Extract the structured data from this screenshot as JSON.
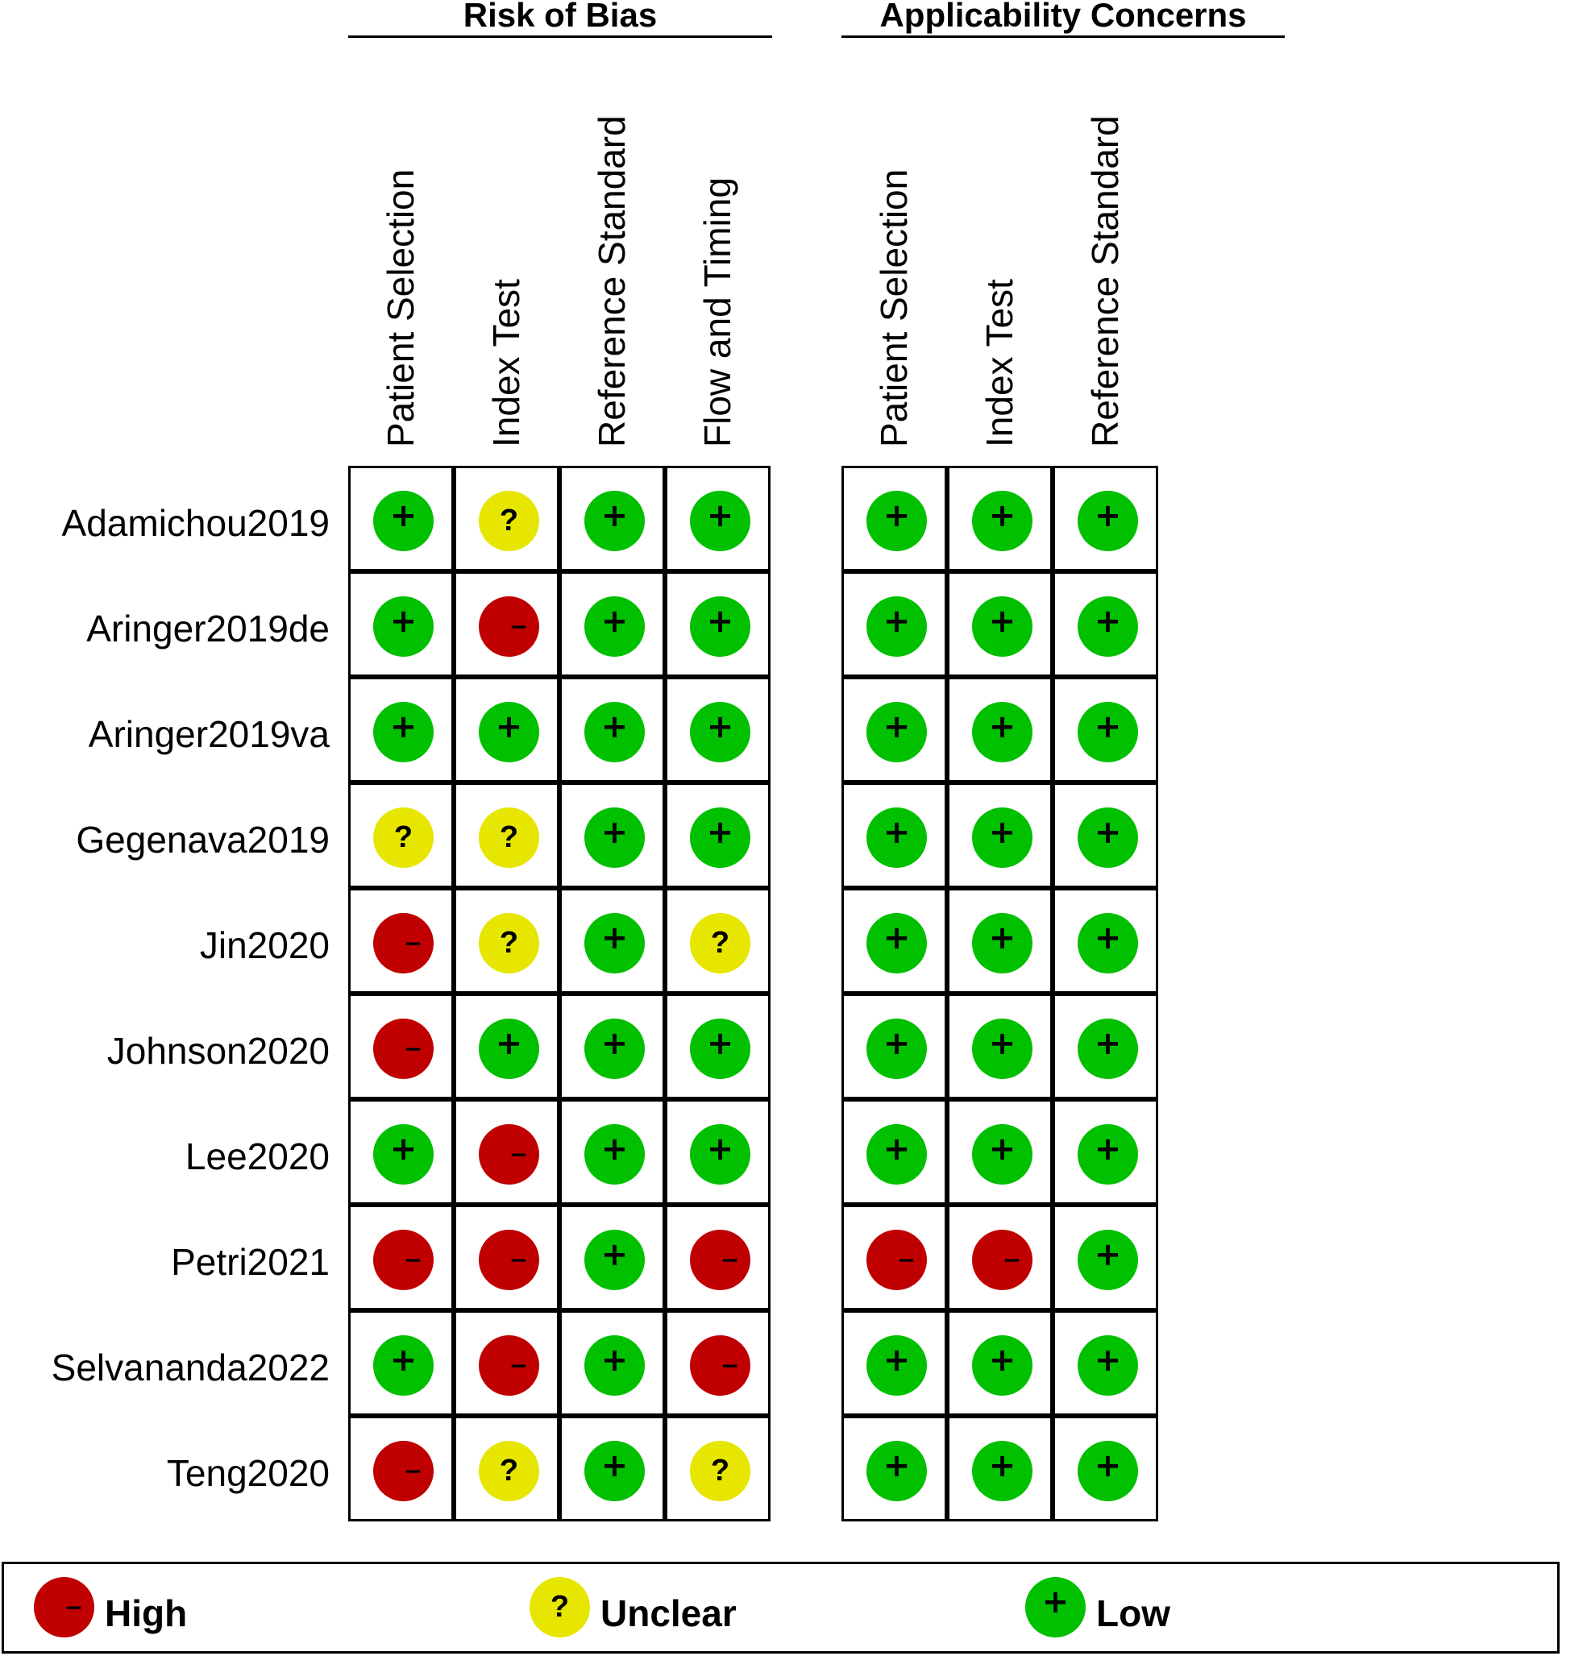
{
  "colors": {
    "high": "#c00000",
    "unclear": "#e6e600",
    "low": "#00c000"
  },
  "groups": [
    {
      "title": "Risk of Bias",
      "columns": [
        "Patient Selection",
        "Index Test",
        "Reference Standard",
        "Flow and Timing"
      ]
    },
    {
      "title": "Applicability Concerns",
      "columns": [
        "Patient Selection",
        "Index Test",
        "Reference Standard"
      ]
    }
  ],
  "studies": [
    {
      "name": "Adamichou2019",
      "bias": [
        "low",
        "unclear",
        "low",
        "low"
      ],
      "applicability": [
        "low",
        "low",
        "low"
      ]
    },
    {
      "name": "Aringer2019de",
      "bias": [
        "low",
        "high",
        "low",
        "low"
      ],
      "applicability": [
        "low",
        "low",
        "low"
      ]
    },
    {
      "name": "Aringer2019va",
      "bias": [
        "low",
        "low",
        "low",
        "low"
      ],
      "applicability": [
        "low",
        "low",
        "low"
      ]
    },
    {
      "name": "Gegenava2019",
      "bias": [
        "unclear",
        "unclear",
        "low",
        "low"
      ],
      "applicability": [
        "low",
        "low",
        "low"
      ]
    },
    {
      "name": "Jin2020",
      "bias": [
        "high",
        "unclear",
        "low",
        "unclear"
      ],
      "applicability": [
        "low",
        "low",
        "low"
      ]
    },
    {
      "name": "Johnson2020",
      "bias": [
        "high",
        "low",
        "low",
        "low"
      ],
      "applicability": [
        "low",
        "low",
        "low"
      ]
    },
    {
      "name": "Lee2020",
      "bias": [
        "low",
        "high",
        "low",
        "low"
      ],
      "applicability": [
        "low",
        "low",
        "low"
      ]
    },
    {
      "name": "Petri2021",
      "bias": [
        "high",
        "high",
        "low",
        "high"
      ],
      "applicability": [
        "high",
        "high",
        "low"
      ]
    },
    {
      "name": "Selvananda2022",
      "bias": [
        "low",
        "high",
        "low",
        "high"
      ],
      "applicability": [
        "low",
        "low",
        "low"
      ]
    },
    {
      "name": "Teng2020",
      "bias": [
        "high",
        "unclear",
        "low",
        "unclear"
      ],
      "applicability": [
        "low",
        "low",
        "low"
      ]
    }
  ],
  "symbols": {
    "high": "−",
    "unclear": "?",
    "low": "+"
  },
  "legend": [
    {
      "key": "high",
      "label": "High"
    },
    {
      "key": "unclear",
      "label": "Unclear"
    },
    {
      "key": "low",
      "label": "Low"
    }
  ]
}
